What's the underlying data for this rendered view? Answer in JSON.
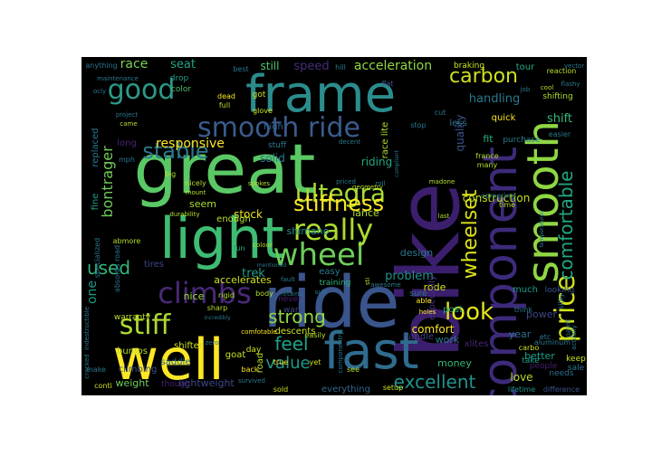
{
  "background": "#000000",
  "colormap": "viridis",
  "words": [
    {
      "text": "bike",
      "color": "#3b1f6e"
    },
    {
      "text": "ride",
      "color": "#3a548c"
    },
    {
      "text": "great",
      "color": "#5ac864"
    },
    {
      "text": "frame",
      "color": "#2b8c8c"
    },
    {
      "text": "light",
      "color": "#3fbc73"
    },
    {
      "text": "component",
      "color": "#3e2a7a"
    },
    {
      "text": "smooth",
      "color": "#8fd744"
    },
    {
      "text": "well",
      "color": "#fde725"
    },
    {
      "text": "fast",
      "color": "#2f6c8e"
    },
    {
      "text": "smooth ride",
      "color": "#3b5b8c"
    },
    {
      "text": "wheel",
      "color": "#6cce59"
    },
    {
      "text": "climbs",
      "color": "#482979"
    },
    {
      "text": "really",
      "color": "#addc30"
    },
    {
      "text": "good",
      "color": "#2c9a89"
    },
    {
      "text": "stiff",
      "color": "#addc30"
    },
    {
      "text": "price",
      "color": "#d2e21b"
    },
    {
      "text": "comfortable",
      "color": "#22a784"
    },
    {
      "text": "ultegra",
      "color": "#a8db34"
    },
    {
      "text": "wheelset",
      "color": "#dde318"
    },
    {
      "text": "look",
      "color": "#e4e419"
    },
    {
      "text": "carbon",
      "color": "#cde11d"
    },
    {
      "text": "stiffness",
      "color": "#fde725"
    },
    {
      "text": "strong",
      "color": "#90d743"
    },
    {
      "text": "fast",
      "color": "#2f6c8e"
    },
    {
      "text": "feel",
      "color": "#1fa187"
    },
    {
      "text": "excellent",
      "color": "#21918c"
    },
    {
      "text": "value",
      "color": "#1f9a8a"
    },
    {
      "text": "stable",
      "color": "#2a788e"
    },
    {
      "text": "used",
      "color": "#34b679"
    },
    {
      "text": "acceleration",
      "color": "#8fd744"
    },
    {
      "text": "bontrager",
      "color": "#6ece58"
    },
    {
      "text": "responsive",
      "color": "#fde725"
    },
    {
      "text": "race",
      "color": "#7ad151"
    },
    {
      "text": "seat",
      "color": "#20a486"
    },
    {
      "text": "still",
      "color": "#52c569"
    },
    {
      "text": "speed",
      "color": "#472d7b"
    },
    {
      "text": "shift",
      "color": "#35b779"
    },
    {
      "text": "handling",
      "color": "#2a788e"
    },
    {
      "text": "fit",
      "color": "#28ae80"
    },
    {
      "text": "quality",
      "color": "#3b528b"
    },
    {
      "text": "construction",
      "color": "#c2df23"
    },
    {
      "text": "solid",
      "color": "#2a788e"
    },
    {
      "text": "riding",
      "color": "#22a884"
    },
    {
      "text": "stock",
      "color": "#e7e419"
    },
    {
      "text": "lance",
      "color": "#addc30"
    },
    {
      "text": "shimano",
      "color": "#21918c"
    },
    {
      "text": "design",
      "color": "#2a788e"
    },
    {
      "text": "trek",
      "color": "#1f9e89"
    },
    {
      "text": "problem",
      "color": "#21918c"
    },
    {
      "text": "comfort",
      "color": "#fde725"
    },
    {
      "text": "one",
      "color": "#1f9a8a"
    },
    {
      "text": "tires",
      "color": "#3e4989"
    },
    {
      "text": "nice",
      "color": "#a0da39"
    },
    {
      "text": "accelerates",
      "color": "#cde11d"
    },
    {
      "text": "work",
      "color": "#2a788e"
    },
    {
      "text": "love",
      "color": "#b5de2b"
    },
    {
      "text": "rode",
      "color": "#d8e219"
    },
    {
      "text": "better",
      "color": "#1f9e89"
    },
    {
      "text": "power",
      "color": "#3f4788"
    },
    {
      "text": "year",
      "color": "#2c728e"
    },
    {
      "text": "money",
      "color": "#35b779"
    },
    {
      "text": "weight",
      "color": "#6ece58"
    },
    {
      "text": "lightweight",
      "color": "#3e4989"
    },
    {
      "text": "everything",
      "color": "#31688e"
    },
    {
      "text": "descents",
      "color": "#cde11d"
    },
    {
      "text": "road",
      "color": "#b5de2b"
    },
    {
      "text": "goat",
      "color": "#cde11d"
    },
    {
      "text": "handle",
      "color": "#433e85"
    },
    {
      "text": "post",
      "color": "#22a884"
    },
    {
      "text": "xlites",
      "color": "#482475"
    },
    {
      "text": "climbing",
      "color": "#3b528b"
    },
    {
      "text": "saddle",
      "color": "#2e6e8e"
    },
    {
      "text": "shifter",
      "color": "#cde11d"
    },
    {
      "text": "bumps",
      "color": "#b5de2b"
    },
    {
      "text": "warranty",
      "color": "#c2df23"
    },
    {
      "text": "easy",
      "color": "#2a788e"
    },
    {
      "text": "training",
      "color": "#31b57b"
    },
    {
      "text": "never",
      "color": "#481f70"
    },
    {
      "text": "want",
      "color": "#3f4788"
    },
    {
      "text": "seem",
      "color": "#addc30"
    },
    {
      "text": "enough",
      "color": "#b5de2b"
    },
    {
      "text": "replaced",
      "color": "#2a788e"
    },
    {
      "text": "fine",
      "color": "#1f9e89"
    },
    {
      "text": "long",
      "color": "#482475"
    },
    {
      "text": "color",
      "color": "#4ac16d"
    },
    {
      "text": "got",
      "color": "#cde11d"
    },
    {
      "text": "drop",
      "color": "#1f9e89"
    },
    {
      "text": "high",
      "color": "#32658e"
    },
    {
      "text": "stuff",
      "color": "#2a788e"
    },
    {
      "text": "race lite",
      "color": "#addc30"
    },
    {
      "text": "less",
      "color": "#2c728e"
    },
    {
      "text": "quick",
      "color": "#fde725"
    },
    {
      "text": "tour",
      "color": "#22a884"
    },
    {
      "text": "braking",
      "color": "#cde11d"
    },
    {
      "text": "shifting",
      "color": "#addc30"
    },
    {
      "text": "purchase",
      "color": "#287d8e"
    },
    {
      "text": "especially",
      "color": "#46327e"
    },
    {
      "text": "sure",
      "color": "#2a788e"
    },
    {
      "text": "much",
      "color": "#1f9e89"
    },
    {
      "text": "looking",
      "color": "#39568c"
    },
    {
      "text": "sale",
      "color": "#2a788e"
    },
    {
      "text": "take",
      "color": "#1f9e89"
    },
    {
      "text": "people",
      "color": "#481f70"
    },
    {
      "text": "needs",
      "color": "#2e6e8e"
    },
    {
      "text": "keep",
      "color": "#cde11d"
    },
    {
      "text": "lifetime",
      "color": "#21918c"
    },
    {
      "text": "difference",
      "color": "#3b528b"
    },
    {
      "text": "anything",
      "color": "#2a788e"
    },
    {
      "text": "best",
      "color": "#2a788e"
    },
    {
      "text": "hill",
      "color": "#2a788e"
    },
    {
      "text": "flat",
      "color": "#3b528b"
    },
    {
      "text": "cut",
      "color": "#2a788e"
    },
    {
      "text": "stop",
      "color": "#2a788e"
    },
    {
      "text": "dead",
      "color": "#fde725"
    },
    {
      "text": "full",
      "color": "#b5de2b"
    },
    {
      "text": "glove",
      "color": "#cde11d"
    },
    {
      "text": "mph",
      "color": "#2a788e"
    },
    {
      "text": "sharp",
      "color": "#b5de2b"
    },
    {
      "text": "fun",
      "color": "#22a884"
    },
    {
      "text": "rigid",
      "color": "#b5de2b"
    },
    {
      "text": "day",
      "color": "#cde11d"
    },
    {
      "text": "back",
      "color": "#fde725"
    },
    {
      "text": "sold",
      "color": "#cde11d"
    },
    {
      "text": "true",
      "color": "#fde725"
    },
    {
      "text": "yet",
      "color": "#cde11d"
    },
    {
      "text": "see",
      "color": "#b5de2b"
    },
    {
      "text": "body",
      "color": "#b5de2b"
    },
    {
      "text": "though",
      "color": "#481f70"
    },
    {
      "text": "conti",
      "color": "#cde11d"
    },
    {
      "text": "make",
      "color": "#2a788e"
    },
    {
      "text": "setup",
      "color": "#cde11d"
    },
    {
      "text": "able",
      "color": "#fde725"
    },
    {
      "text": "holes",
      "color": "#fde725"
    },
    {
      "text": "think",
      "color": "#2a788e"
    },
    {
      "text": "etc",
      "color": "#2a788e"
    },
    {
      "text": "carbo",
      "color": "#cde11d"
    },
    {
      "text": "silky",
      "color": "#2a788e"
    },
    {
      "text": "paint",
      "color": "#2a788e"
    },
    {
      "text": "aluminum",
      "color": "#2a788e"
    },
    {
      "text": "france",
      "color": "#b5de2b"
    },
    {
      "text": "many",
      "color": "#b5de2b"
    },
    {
      "text": "time",
      "color": "#b5de2b"
    },
    {
      "text": "cornering",
      "color": "#2a788e"
    },
    {
      "text": "easier",
      "color": "#2a788e"
    },
    {
      "text": "reaction",
      "color": "#b5de2b"
    },
    {
      "text": "maintenance",
      "color": "#2a788e"
    },
    {
      "text": "ocly",
      "color": "#2a788e"
    },
    {
      "text": "project",
      "color": "#2a788e"
    },
    {
      "text": "came",
      "color": "#b5de2b"
    },
    {
      "text": "big",
      "color": "#b5de2b"
    },
    {
      "text": "nicely",
      "color": "#b5de2b"
    },
    {
      "text": "mount",
      "color": "#b5de2b"
    },
    {
      "text": "durability",
      "color": "#b5de2b"
    },
    {
      "text": "spokes",
      "color": "#b5de2b"
    },
    {
      "text": "roll",
      "color": "#2a788e"
    },
    {
      "text": "geometry",
      "color": "#b5de2b"
    },
    {
      "text": "madone",
      "color": "#b5de2b"
    },
    {
      "text": "last",
      "color": "#b5de2b"
    },
    {
      "text": "awesome",
      "color": "#2a788e"
    },
    {
      "text": "fault",
      "color": "#2a788e"
    },
    {
      "text": "colour",
      "color": "#b5de2b"
    },
    {
      "text": "specialized",
      "color": "#2a788e"
    },
    {
      "text": "absorbs road",
      "color": "#2a788e"
    },
    {
      "text": "abmore",
      "color": "#b5de2b"
    },
    {
      "text": "comfotable",
      "color": "#fde725"
    },
    {
      "text": "zero",
      "color": "#2a788e"
    },
    {
      "text": "survived",
      "color": "#2a788e"
    },
    {
      "text": "retains",
      "color": "#2a788e"
    },
    {
      "text": "componentry",
      "color": "#2a788e"
    },
    {
      "text": "indestructible",
      "color": "#2a788e"
    },
    {
      "text": "cracked",
      "color": "#2a788e"
    },
    {
      "text": "sti",
      "color": "#b5de2b"
    },
    {
      "text": "sub",
      "color": "#2a788e"
    },
    {
      "text": "decent",
      "color": "#2a788e"
    },
    {
      "text": "priced",
      "color": "#2a788e"
    },
    {
      "text": "job",
      "color": "#2a788e"
    },
    {
      "text": "cool",
      "color": "#b5de2b"
    },
    {
      "text": "flashy",
      "color": "#2a788e"
    },
    {
      "text": "vector",
      "color": "#2a788e"
    },
    {
      "text": "mentioned",
      "color": "#2a788e"
    },
    {
      "text": "incredibly",
      "color": "#2a788e"
    },
    {
      "text": "compliant",
      "color": "#2a788e"
    },
    {
      "text": "easily",
      "color": "#b5de2b"
    },
    {
      "text": "actually",
      "color": "#2a788e"
    },
    {
      "text": "temperatures",
      "color": "#2a788e"
    }
  ]
}
